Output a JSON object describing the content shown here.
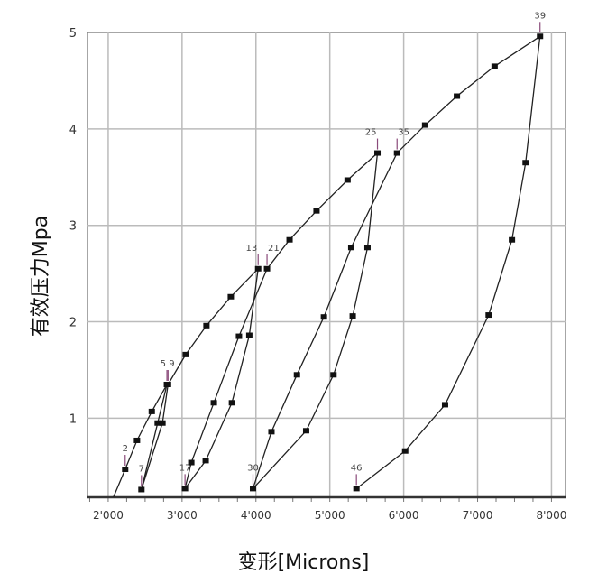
{
  "chart_data": {
    "type": "line",
    "title": "",
    "xlabel": "变形[Microns]",
    "ylabel": "有效压力Mpa",
    "xlim": [
      1720,
      8190
    ],
    "ylim": [
      0.18,
      5
    ],
    "grid": true,
    "x_ticks": [
      2000,
      3000,
      4000,
      5000,
      6000,
      7000,
      8000
    ],
    "x_tick_labels": [
      "2'000",
      "3'000",
      "4'000",
      "5'000",
      "6'000",
      "7'000",
      "8'000"
    ],
    "y_ticks": [
      1,
      2,
      3,
      4,
      5
    ],
    "y_tick_labels": [
      "1",
      "2",
      "3",
      "4",
      "5"
    ],
    "colors": {
      "line": "#222222",
      "grid": "#bbbbbb",
      "label_tick": "#8a4a7a"
    },
    "series": [
      {
        "points": [
          {
            "x": 2070,
            "y": 0.18
          },
          {
            "x": 2230,
            "y": 0.47,
            "label": "2"
          },
          {
            "x": 2390,
            "y": 0.77
          },
          {
            "x": 2590,
            "y": 1.07
          },
          {
            "x": 2795,
            "y": 1.35,
            "label": "5"
          },
          {
            "x": 2670,
            "y": 0.95
          },
          {
            "x": 2450,
            "y": 0.26,
            "label": "7"
          },
          {
            "x": 2735,
            "y": 0.95
          },
          {
            "x": 2810,
            "y": 1.35,
            "label": "9"
          },
          {
            "x": 3050,
            "y": 1.66
          },
          {
            "x": 3330,
            "y": 1.96
          },
          {
            "x": 3660,
            "y": 2.26
          },
          {
            "x": 4030,
            "y": 2.55,
            "label": "13"
          },
          {
            "x": 3910,
            "y": 1.86
          },
          {
            "x": 3675,
            "y": 1.16
          },
          {
            "x": 3320,
            "y": 0.56
          },
          {
            "x": 3040,
            "y": 0.27,
            "label": "17"
          },
          {
            "x": 3125,
            "y": 0.54
          },
          {
            "x": 3430,
            "y": 1.16
          },
          {
            "x": 3770,
            "y": 1.85
          },
          {
            "x": 4150,
            "y": 2.55,
            "label": "21"
          },
          {
            "x": 4455,
            "y": 2.85
          },
          {
            "x": 4820,
            "y": 3.15
          },
          {
            "x": 5240,
            "y": 3.47
          },
          {
            "x": 5645,
            "y": 3.75,
            "label": "25"
          },
          {
            "x": 5510,
            "y": 2.77
          },
          {
            "x": 5310,
            "y": 2.06
          },
          {
            "x": 5050,
            "y": 1.45
          },
          {
            "x": 4680,
            "y": 0.87
          },
          {
            "x": 3960,
            "y": 0.27,
            "label": "30"
          },
          {
            "x": 4210,
            "y": 0.86
          },
          {
            "x": 4555,
            "y": 1.45
          },
          {
            "x": 4920,
            "y": 2.05
          },
          {
            "x": 5290,
            "y": 2.77
          },
          {
            "x": 5910,
            "y": 3.75,
            "label": "35"
          },
          {
            "x": 6290,
            "y": 4.04
          },
          {
            "x": 6720,
            "y": 4.34
          },
          {
            "x": 7230,
            "y": 4.65
          },
          {
            "x": 7845,
            "y": 4.96,
            "label": "39"
          },
          {
            "x": 7650,
            "y": 3.65
          },
          {
            "x": 7465,
            "y": 2.85
          },
          {
            "x": 7150,
            "y": 2.07
          },
          {
            "x": 6560,
            "y": 1.14
          },
          {
            "x": 6020,
            "y": 0.66
          },
          {
            "x": 5360,
            "y": 0.27,
            "label": "46"
          }
        ]
      }
    ]
  }
}
